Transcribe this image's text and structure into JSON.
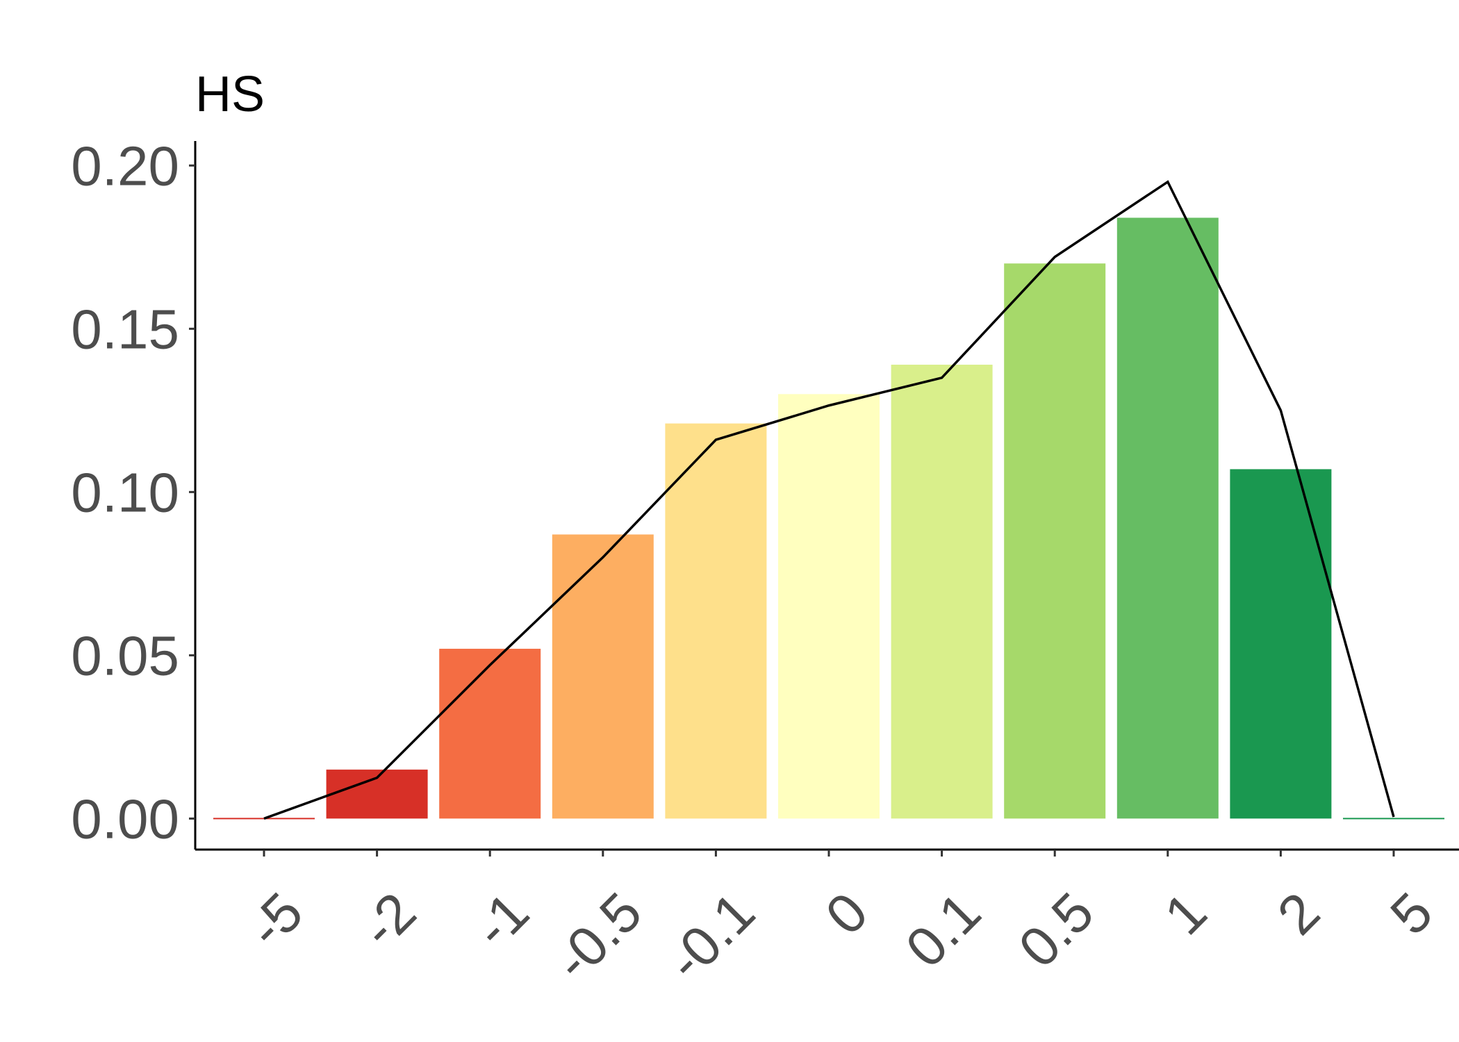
{
  "chart_data": {
    "type": "bar",
    "ylabel": "HS",
    "xlabel": "",
    "categories": [
      "-5",
      "-2",
      "-1",
      "-0.5",
      "-0.1",
      "0",
      "0.1",
      "0.5",
      "1",
      "2",
      "5"
    ],
    "series": [
      {
        "type": "bar",
        "values": [
          0.0,
          0.015,
          0.052,
          0.087,
          0.121,
          0.13,
          0.139,
          0.17,
          0.184,
          0.107,
          0.0
        ],
        "colors": [
          "#D73027",
          "#D73027",
          "#F46D43",
          "#FDAE61",
          "#FEE08B",
          "#FFFFBF",
          "#D9EF8B",
          "#A6D96A",
          "#66BD63",
          "#1A9850",
          "#1A9850"
        ]
      },
      {
        "type": "line",
        "color": "#000000",
        "values": [
          0.0,
          0.0125,
          0.047,
          0.08,
          0.116,
          0.1265,
          0.135,
          0.172,
          0.195,
          0.125,
          0.0005
        ]
      }
    ],
    "ylim": [
      -0.0095,
      0.2075
    ],
    "yticks": [
      "0.00",
      "0.05",
      "0.10",
      "0.15",
      "0.20"
    ],
    "ytick_values": [
      0,
      0.05,
      0.1,
      0.15,
      0.2
    ],
    "grid": false,
    "legend": "none"
  }
}
